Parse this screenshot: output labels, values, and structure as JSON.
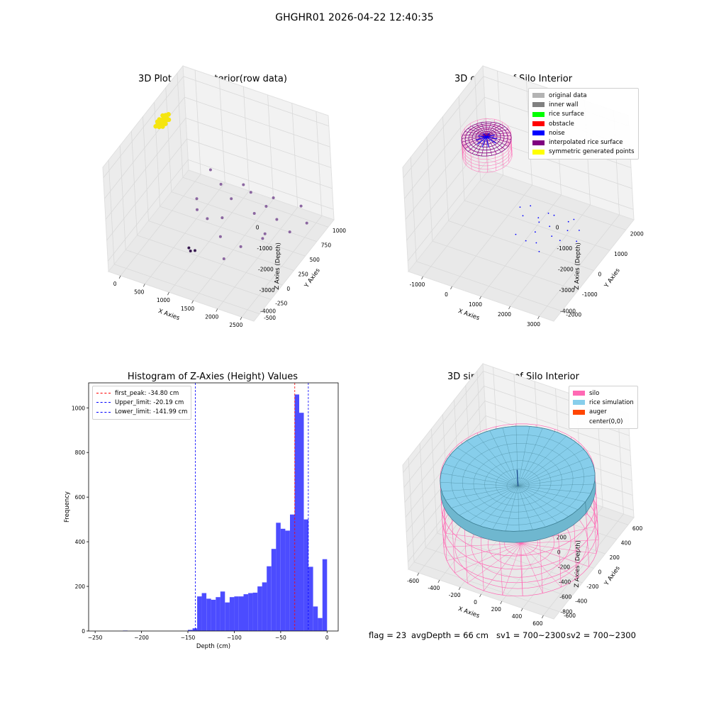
{
  "figure": {
    "suptitle": "GHGHR01 2026-04-22 12:40:35",
    "footer": {
      "flag": "flag = 23",
      "avg_depth": "avgDepth = 66 cm",
      "sv1": "sv1 = 700~2300",
      "sv2": "sv2 = 700~2300"
    }
  },
  "chart_data": [
    {
      "type": "scatter3d",
      "title": "3D Plot of Silo Interior(row data)",
      "xlabel": "X Axies",
      "ylabel": "Y Axies",
      "zlabel": "Z Axies (Depth)",
      "xticks": [
        "0",
        "500",
        "1000",
        "1500",
        "2000",
        "2500"
      ],
      "yticks": [
        "-500",
        "-250",
        "0",
        "250",
        "500",
        "750",
        "1000"
      ],
      "zticks": [
        "0",
        "-1000",
        "-2000",
        "-3000",
        "-4000"
      ],
      "xlim": [
        -300,
        2600
      ],
      "ylim": [
        -550,
        1150
      ],
      "zlim": [
        -4600,
        200
      ],
      "series": [
        {
          "color": "#7a4f93",
          "points": [
            [
              300,
              1000,
              -3700
            ],
            [
              700,
              800,
              -3500
            ],
            [
              1100,
              600,
              -3300
            ],
            [
              1500,
              650,
              -3800
            ],
            [
              1900,
              700,
              -3900
            ],
            [
              2200,
              650,
              -4100
            ],
            [
              2000,
              300,
              -3600
            ],
            [
              1700,
              150,
              -3800
            ],
            [
              1400,
              50,
              -3300
            ],
            [
              1000,
              200,
              -3200
            ],
            [
              700,
              300,
              -3300
            ],
            [
              500,
              500,
              -3500
            ],
            [
              1300,
              800,
              -3400
            ],
            [
              1650,
              900,
              -3650
            ],
            [
              2100,
              1000,
              -3950
            ],
            [
              900,
              1050,
              -4050
            ],
            [
              1600,
              -100,
              -3750
            ],
            [
              1800,
              600,
              -3100
            ],
            [
              2300,
              900,
              -4300
            ],
            [
              1150,
              350,
              -3450
            ],
            [
              1950,
              400,
              -3700
            ]
          ]
        },
        {
          "color": "#3a1c52",
          "points": [
            [
              900,
              -100,
              -3800
            ],
            [
              950,
              -120,
              -3850
            ],
            [
              1000,
              -80,
              -3900
            ]
          ]
        },
        {
          "color": "#f5e50f",
          "points": [
            [
              -50,
              300,
              -50
            ],
            [
              -30,
              330,
              0
            ],
            [
              0,
              360,
              50
            ],
            [
              20,
              300,
              -20
            ],
            [
              40,
              340,
              30
            ],
            [
              -20,
              390,
              -40
            ],
            [
              10,
              420,
              10
            ],
            [
              50,
              380,
              60
            ],
            [
              -60,
              350,
              20
            ],
            [
              30,
              450,
              -10
            ],
            [
              70,
              410,
              40
            ],
            [
              -40,
              440,
              70
            ],
            [
              0,
              300,
              90
            ],
            [
              60,
              330,
              -60
            ],
            [
              -10,
              470,
              30
            ],
            [
              90,
              360,
              10
            ],
            [
              40,
              480,
              80
            ],
            [
              -70,
              400,
              -20
            ],
            [
              20,
              380,
              100
            ],
            [
              80,
              440,
              -30
            ]
          ]
        }
      ]
    },
    {
      "type": "scatter3d",
      "title": "3D classify of Silo Interior",
      "xlabel": "X Axies",
      "ylabel": "Y Axies",
      "zlabel": "Z Axies (Depth)",
      "xticks": [
        "-1000",
        "0",
        "1000",
        "2000",
        "3000"
      ],
      "yticks": [
        "-2000",
        "-1000",
        "0",
        "1000",
        "2000"
      ],
      "zticks": [
        "0",
        "-1000",
        "-2000",
        "-3000",
        "-4000"
      ],
      "xlim": [
        -1400,
        3300
      ],
      "ylim": [
        -2300,
        2300
      ],
      "zlim": [
        -4600,
        200
      ],
      "legend": [
        {
          "label": "original data",
          "color": "#b3b3b3"
        },
        {
          "label": "inner wall",
          "color": "#808080"
        },
        {
          "label": "rice surface",
          "color": "#00ff00"
        },
        {
          "label": "obstacle",
          "color": "#ff0000"
        },
        {
          "label": "noise",
          "color": "#0000ff"
        },
        {
          "label": "interpolated rice surface",
          "color": "#800080"
        },
        {
          "label": "symmetric generated points",
          "color": "#ffff00"
        }
      ],
      "cylinder": {
        "center": [
          0,
          0
        ],
        "radius": 700,
        "top": 0,
        "bottom": -900
      },
      "surface_z": -150,
      "noise_points": [
        [
          1200,
          600,
          -3800
        ],
        [
          1600,
          800,
          -3700
        ],
        [
          2000,
          900,
          -3900
        ],
        [
          1400,
          300,
          -3600
        ],
        [
          1800,
          200,
          -3500
        ],
        [
          2200,
          500,
          -3800
        ],
        [
          1000,
          100,
          -3300
        ],
        [
          1500,
          -100,
          -3600
        ],
        [
          1300,
          -300,
          -3900
        ],
        [
          1700,
          -400,
          -3700
        ],
        [
          2100,
          -200,
          -3400
        ],
        [
          900,
          700,
          -3500
        ],
        [
          2400,
          800,
          -4000
        ],
        [
          1900,
          -600,
          -3800
        ],
        [
          1100,
          -500,
          -3500
        ],
        [
          2600,
          300,
          -3900
        ],
        [
          800,
          300,
          -3200
        ],
        [
          2300,
          -100,
          -3600
        ],
        [
          1600,
          500,
          -3300
        ],
        [
          2000,
          1200,
          -4100
        ]
      ]
    },
    {
      "type": "bar",
      "title": "Histogram of Z-Axies (Height) Values",
      "xlabel": "Depth (cm)",
      "ylabel": "Frequency",
      "xlim": [
        -257,
        12
      ],
      "ylim": [
        0,
        1112
      ],
      "xticks": [
        -250,
        -200,
        -150,
        -100,
        -50,
        0
      ],
      "yticks": [
        0,
        200,
        400,
        600,
        800,
        1000
      ],
      "bar_color": "#0000ff",
      "bins": [
        [
          -220,
          -215,
          2
        ],
        [
          -150,
          -145,
          5
        ],
        [
          -145,
          -140,
          12
        ],
        [
          -140,
          -135,
          155
        ],
        [
          -135,
          -130,
          170
        ],
        [
          -130,
          -125,
          145
        ],
        [
          -125,
          -120,
          140
        ],
        [
          -120,
          -115,
          152
        ],
        [
          -115,
          -110,
          177
        ],
        [
          -110,
          -105,
          128
        ],
        [
          -105,
          -100,
          152
        ],
        [
          -100,
          -95,
          155
        ],
        [
          -95,
          -90,
          155
        ],
        [
          -90,
          -85,
          165
        ],
        [
          -85,
          -80,
          170
        ],
        [
          -80,
          -75,
          172
        ],
        [
          -75,
          -70,
          200
        ],
        [
          -70,
          -65,
          218
        ],
        [
          -65,
          -60,
          290
        ],
        [
          -60,
          -55,
          368
        ],
        [
          -55,
          -50,
          485
        ],
        [
          -50,
          -45,
          458
        ],
        [
          -45,
          -40,
          450
        ],
        [
          -40,
          -35,
          522
        ],
        [
          -35,
          -30,
          1060
        ],
        [
          -30,
          -25,
          978
        ],
        [
          -25,
          -20,
          500
        ],
        [
          -20,
          -15,
          288
        ],
        [
          -15,
          -10,
          110
        ],
        [
          -10,
          -5,
          58
        ],
        [
          -5,
          0,
          322
        ]
      ],
      "vlines": [
        {
          "label": "first_peak: -34.80 cm",
          "x": -34.8,
          "color": "#ff0000"
        },
        {
          "label": "Upper_limit: -20.19 cm",
          "x": -20.19,
          "color": "#0000ff"
        },
        {
          "label": "Lower_limit: -141.99 cm",
          "x": -141.99,
          "color": "#0000ff"
        }
      ]
    },
    {
      "type": "surface3d",
      "title": "3D simulation of Silo Interior",
      "xlabel": "X Axies",
      "ylabel": "Y Axies",
      "zlabel": "Z Axies (Depth)",
      "xticks": [
        "-600",
        "-400",
        "-200",
        "0",
        "200",
        "400",
        "600"
      ],
      "yticks": [
        "-600",
        "-400",
        "-200",
        "0",
        "200",
        "400",
        "600"
      ],
      "zticks": [
        "400",
        "200",
        "0",
        "-200",
        "-400",
        "-600",
        "-800"
      ],
      "xlim": [
        -750,
        750
      ],
      "ylim": [
        -750,
        750
      ],
      "zlim": [
        -900,
        500
      ],
      "legend": [
        {
          "label": "silo",
          "color": "#ff69b4"
        },
        {
          "label": "rice simulation",
          "color": "#87ceeb"
        },
        {
          "label": "auger",
          "color": "#ff4500"
        },
        {
          "label": "center(0,0)",
          "color": ""
        }
      ],
      "silo": {
        "radius": 700,
        "top": 0,
        "bottom": -900
      },
      "rice_level": -30
    }
  ]
}
